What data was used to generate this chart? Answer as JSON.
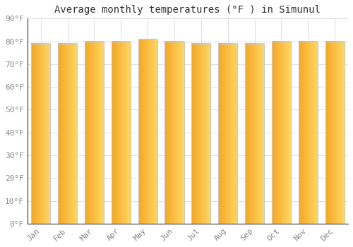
{
  "title": "Average monthly temperatures (°F ) in Simunul",
  "months": [
    "Jan",
    "Feb",
    "Mar",
    "Apr",
    "May",
    "Jun",
    "Jul",
    "Aug",
    "Sep",
    "Oct",
    "Nov",
    "Dec"
  ],
  "values": [
    79,
    79,
    80,
    80,
    81,
    80,
    79,
    79,
    79,
    80,
    80,
    80
  ],
  "ylim": [
    0,
    90
  ],
  "yticks": [
    0,
    10,
    20,
    30,
    40,
    50,
    60,
    70,
    80,
    90
  ],
  "ytick_labels": [
    "0°F",
    "10°F",
    "20°F",
    "30°F",
    "40°F",
    "50°F",
    "60°F",
    "70°F",
    "80°F",
    "90°F"
  ],
  "bar_color_left": "#F5A623",
  "bar_color_right": "#FFD966",
  "bar_edge_color": "#C8C8C8",
  "background_color": "#FFFFFF",
  "grid_color": "#DDDDDD",
  "title_fontsize": 10,
  "tick_fontsize": 8,
  "font_family": "monospace",
  "tick_color": "#888888",
  "spine_color": "#333333"
}
